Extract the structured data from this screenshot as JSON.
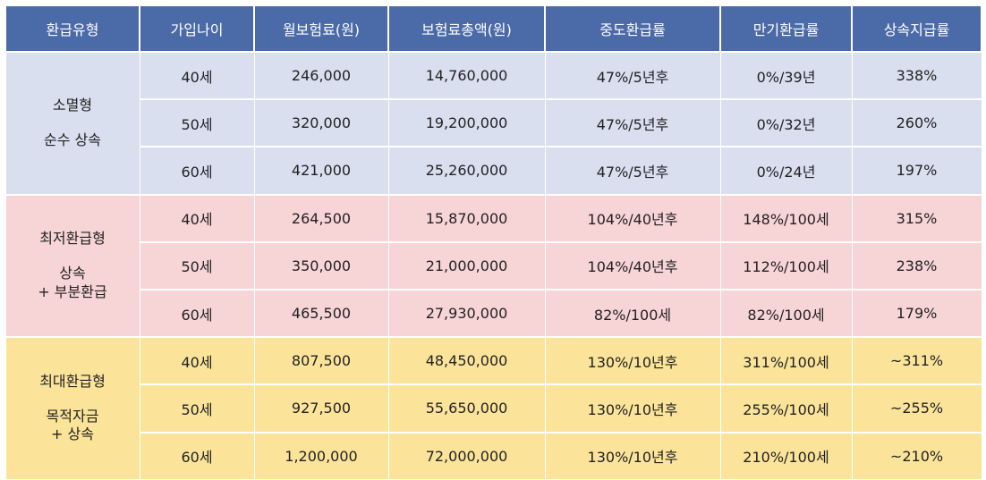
{
  "headers": [
    "환급유형",
    "가입나이",
    "월보험료(원)",
    "보험료총액(원)",
    "중도환급률",
    "만기환급률",
    "상속지급률"
  ],
  "groups": [
    {
      "type_lines": [
        "소멸형",
        "순수 상속"
      ],
      "rows": [
        [
          "40세",
          "246,000",
          "14,760,000",
          "47%/5년후",
          "0%/39년",
          "338%"
        ],
        [
          "50세",
          "320,000",
          "19,200,000",
          "47%/5년후",
          "0%/32년",
          "260%"
        ],
        [
          "60세",
          "421,000",
          "25,260,000",
          "47%/5년후",
          "0%/24년",
          "197%"
        ]
      ]
    },
    {
      "type_lines": [
        "최저환급형",
        "상속",
        "+ 부분환급"
      ],
      "rows": [
        [
          "40세",
          "264,500",
          "15,870,000",
          "104%/40년후",
          "148%/100세",
          "315%"
        ],
        [
          "50세",
          "350,000",
          "21,000,000",
          "104%/40년후",
          "112%/100세",
          "238%"
        ],
        [
          "60세",
          "465,500",
          "27,930,000",
          "82%/100세",
          "82%/100세",
          "179%"
        ]
      ]
    },
    {
      "type_lines": [
        "최대환급형",
        "목적자금",
        "+ 상속"
      ],
      "rows": [
        [
          "40세",
          "807,500",
          "48,450,000",
          "130%/10년후",
          "311%/100세",
          "~311%"
        ],
        [
          "50세",
          "927,500",
          "55,650,000",
          "130%/10년후",
          "255%/100세",
          "~255%"
        ],
        [
          "60세",
          "1,200,000",
          "72,000,000",
          "130%/10년후",
          "210%/100세",
          "~210%"
        ]
      ]
    }
  ]
}
